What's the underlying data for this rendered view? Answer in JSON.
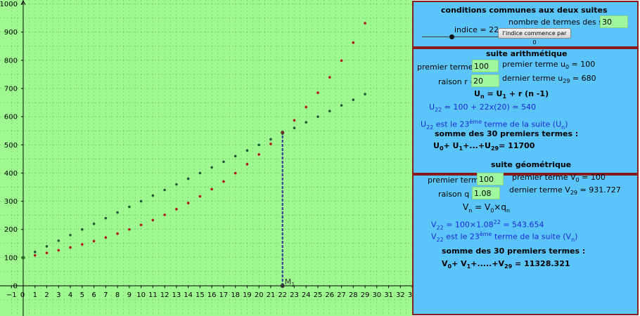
{
  "colors": {
    "background": "#a0f890",
    "grid": "#2f8f2f",
    "arith_points": "#1f5a3a",
    "geo_points": "#b01818",
    "segment": "#3a3aa0",
    "panel": "#5bc4f9",
    "panel_border": "#8b1c1c",
    "field": "#9ff7a0",
    "formula_blue": "#1a2bd8"
  },
  "chart_data": {
    "type": "scatter",
    "xlim": [
      -1,
      33
    ],
    "ylim": [
      -20,
      1050
    ],
    "grid": true,
    "x_ticks": [
      -1,
      0,
      1,
      2,
      3,
      4,
      5,
      6,
      7,
      8,
      9,
      10,
      11,
      12,
      13,
      14,
      15,
      16,
      17,
      18,
      19,
      20,
      21,
      22,
      23,
      24,
      25,
      26,
      27,
      28,
      29,
      30,
      31,
      32,
      33
    ],
    "y_ticks": [
      0,
      100,
      200,
      300,
      400,
      500,
      600,
      700,
      800,
      900,
      1000
    ],
    "series": [
      {
        "x": [
          0,
          1,
          2,
          3,
          4,
          5,
          6,
          7,
          8,
          9,
          10,
          11,
          12,
          13,
          14,
          15,
          16,
          17,
          18,
          19,
          20,
          21,
          22,
          23,
          24,
          25,
          26,
          27,
          28,
          29
        ],
        "y": [
          100,
          120,
          140,
          160,
          180,
          200,
          220,
          240,
          260,
          280,
          300,
          320,
          340,
          360,
          380,
          400,
          420,
          440,
          460,
          480,
          500,
          520,
          540,
          560,
          580,
          600,
          620,
          640,
          660,
          680
        ]
      },
      {
        "x": [
          0,
          1,
          2,
          3,
          4,
          5,
          6,
          7,
          8,
          9,
          10,
          11,
          12,
          13,
          14,
          15,
          16,
          17,
          18,
          19,
          20,
          21,
          22,
          23,
          24,
          25,
          26,
          27,
          28,
          29
        ],
        "y": [
          100,
          108,
          116.64,
          125.97,
          136.05,
          146.93,
          158.69,
          171.38,
          185.09,
          199.9,
          215.89,
          233.16,
          251.82,
          271.96,
          293.72,
          317.22,
          342.59,
          370,
          399.6,
          431.57,
          466.1,
          503.38,
          543.65,
          587.15,
          634.12,
          684.85,
          739.64,
          798.81,
          862.71,
          931.73
        ]
      }
    ],
    "marker": {
      "x": 22,
      "y0": 0,
      "y1": 543.654,
      "label": "M",
      "label_sub": "1"
    }
  },
  "common": {
    "title": "conditions communes aux deux suites",
    "n_terms_label": "nombre de termes des suites",
    "n_terms_value": "30",
    "index_label": "indice = 22",
    "slider_value": 22,
    "slider_max": 29,
    "button_label": "l'indice commence par 0"
  },
  "arith": {
    "title": "suite arithmétique",
    "first_label": "premier terme =",
    "first_value": "100",
    "first_info_main": "premier terme u",
    "first_info_sub": "0",
    "first_info_tail": " = 100",
    "ratio_label": "raison r =",
    "ratio_value": "20",
    "last_info_main": "dernier terme u",
    "last_info_sub": "29",
    "last_info_tail": " = 680",
    "formula": {
      "a": "U",
      "a_sub": "n",
      "b": " = U",
      "b_sub": "1",
      "c": " + r (n -1)"
    },
    "calc": {
      "a": "U",
      "a_sub": "22",
      "b": " = 100 + 22x(20) = 540"
    },
    "rank": {
      "a": "U",
      "a_sub": "22",
      "b": " est le 23",
      "sup": "ème",
      "c": " terme de la suite (U",
      "c_sub": "n",
      "d": ")"
    },
    "sum_title": "somme des  30 premiers termes :",
    "sum": {
      "a": "U",
      "a_sub": "0",
      "b": "+ U",
      "b_sub": "1",
      "c": "+...+U",
      "c_sub": "29",
      "d": "= 11700"
    }
  },
  "geo": {
    "title": "suite géométrique",
    "first_label": "premier terme",
    "first_value": "100",
    "first_info_main": "premier terme V",
    "first_info_sub": "0",
    "first_info_tail": " =  100",
    "ratio_label": "raison q =",
    "ratio_value": "1.08",
    "last_info_main": "dernier terme V",
    "last_info_sub": "29",
    "last_info_tail": " = 931.727",
    "formula": {
      "a": "V",
      "a_sub": "n",
      "b": " = V",
      "b_sub": "0",
      "c": "×q",
      "c_sub": "n"
    },
    "calc": {
      "a": "V",
      "a_sub": "22",
      "b": " = 100×1.08",
      "sup": "22",
      "c": " = 543.654"
    },
    "rank": {
      "a": "V",
      "a_sub": "22",
      "b": " est le 23",
      "sup": "ème",
      "c": " terme de la suite (V",
      "c_sub": "n",
      "d": ")"
    },
    "sum_title": "somme des 30 premiers termes :",
    "sum": {
      "a": "V",
      "a_sub": "0",
      "b": "+ V",
      "b_sub": "1",
      "c": "+.....+V",
      "c_sub": "29",
      "d": " = 11328.321"
    }
  }
}
